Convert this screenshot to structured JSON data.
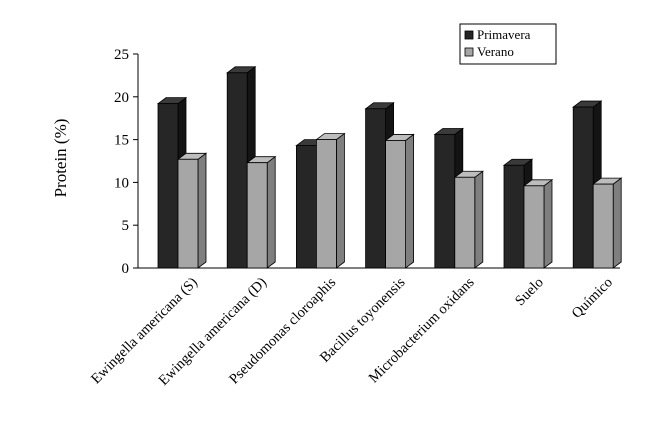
{
  "chart_data": {
    "type": "bar",
    "title": "",
    "xlabel": "",
    "ylabel": "Protein (%)",
    "ylim": [
      0,
      25
    ],
    "yticks": [
      0,
      5,
      10,
      15,
      20,
      25
    ],
    "grid": false,
    "legend_position": "top-right",
    "categories": [
      "Ewingella americana (S)",
      "Ewingella americana (D)",
      "Pseudomonas cloroaphis",
      "Bacillus toyonensis",
      "Microbacterium oxidans",
      "Suelo",
      "Químico"
    ],
    "series": [
      {
        "name": "Primavera",
        "color": "#262626",
        "values": [
          19.2,
          22.8,
          14.3,
          18.6,
          15.6,
          12.0,
          18.8
        ]
      },
      {
        "name": "Verano",
        "color": "#a6a6a6",
        "values": [
          12.7,
          12.3,
          15.0,
          14.9,
          10.6,
          9.6,
          9.8
        ]
      }
    ]
  }
}
